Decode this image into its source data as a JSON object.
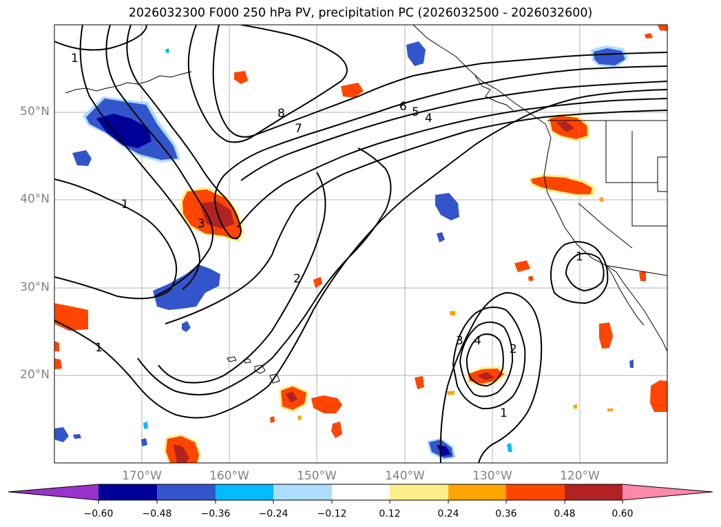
{
  "title": "2026032300 F000 250 hPa PV, precipitation PC (2026032500 - 2026032600)",
  "lat_labels": [
    "50°N",
    "40°N",
    "30°N",
    "20°N"
  ],
  "lon_labels": [
    "170°W",
    "160°W",
    "150°W",
    "140°W",
    "130°W",
    "120°W"
  ],
  "contour_labels": [
    "1",
    "8",
    "7",
    "6",
    "5",
    "4",
    "1",
    "3",
    "2",
    "1",
    "3",
    "4",
    "2",
    "1",
    "1"
  ],
  "colorbar": {
    "tick_labels": [
      "−0.60",
      "−0.48",
      "−0.36",
      "−0.24",
      "−0.12",
      "0.12",
      "0.24",
      "0.36",
      "0.48",
      "0.60"
    ],
    "colors": [
      "#9933cc",
      "#000099",
      "#3355cc",
      "#00bbff",
      "#aaddff",
      "#ffffff",
      "#ffee88",
      "#ffa500",
      "#ff4500",
      "#b22222",
      "#ff88aa"
    ]
  },
  "colors": {
    "blue_dark": "#000099",
    "blue_mid": "#3355cc",
    "blue_light": "#00bbff",
    "blue_pale": "#aaddff",
    "yellow": "#ffee88",
    "orange": "#ffa500",
    "red": "#ff4500",
    "darkred": "#b22222"
  }
}
